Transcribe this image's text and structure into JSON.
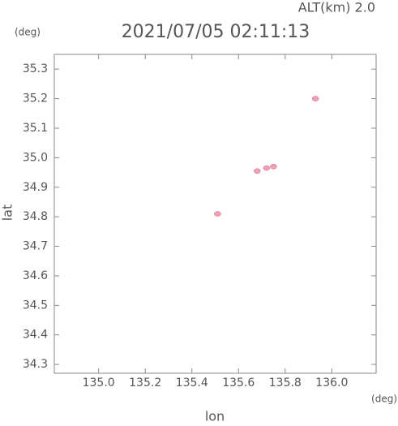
{
  "chart_data": {
    "type": "scatter",
    "title": "2021/07/05 02:11:13",
    "annotation": "ALT(km) 2.0",
    "xlabel": "lon",
    "ylabel": "lat",
    "xunit": "(deg)",
    "yunit": "(deg)",
    "x": [
      135.93,
      135.68,
      135.72,
      135.75,
      135.51
    ],
    "values": [
      35.2,
      34.955,
      34.965,
      34.97,
      34.81
    ],
    "color": "#f2a0b0",
    "xlim": [
      134.81,
      136.19
    ],
    "ylim": [
      34.27,
      35.35
    ],
    "xticks": [
      {
        "value": 135,
        "label": "135.0"
      },
      135.2,
      135.4,
      135.6,
      135.8,
      {
        "value": 136,
        "label": "136.0"
      }
    ],
    "yticks": [
      34.3,
      34.4,
      34.5,
      34.6,
      34.7,
      34.8,
      34.9,
      {
        "value": 35,
        "label": "35.0"
      },
      35.1,
      35.2,
      35.3
    ]
  }
}
